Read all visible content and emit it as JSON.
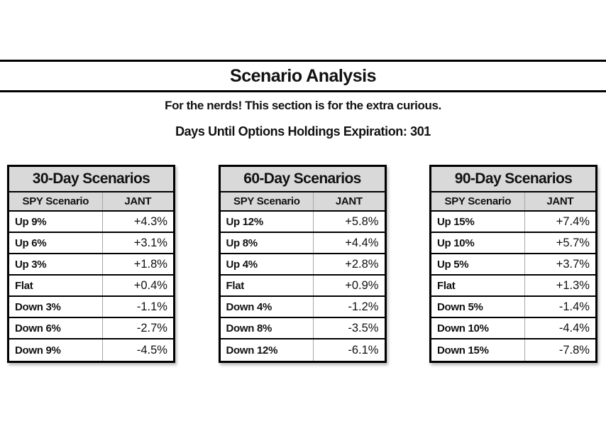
{
  "page": {
    "title": "Scenario Analysis",
    "subtitle": "For the nerds! This section is for the extra curious.",
    "expiration_line": "Days Until Options Holdings Expiration: 301"
  },
  "colors": {
    "header_bg": "#d9d9d9",
    "border": "#000000",
    "column_divider": "#a6a6a6",
    "text": "#111111",
    "background": "#ffffff"
  },
  "tables": [
    {
      "title": "30-Day Scenarios",
      "col_headers": [
        "SPY Scenario",
        "JANT"
      ],
      "rows": [
        [
          "Up 9%",
          "+4.3%"
        ],
        [
          "Up 6%",
          "+3.1%"
        ],
        [
          "Up 3%",
          "+1.8%"
        ],
        [
          "Flat",
          "+0.4%"
        ],
        [
          "Down 3%",
          "-1.1%"
        ],
        [
          "Down 6%",
          "-2.7%"
        ],
        [
          "Down 9%",
          "-4.5%"
        ]
      ]
    },
    {
      "title": "60-Day Scenarios",
      "col_headers": [
        "SPY Scenario",
        "JANT"
      ],
      "rows": [
        [
          "Up 12%",
          "+5.8%"
        ],
        [
          "Up 8%",
          "+4.4%"
        ],
        [
          "Up 4%",
          "+2.8%"
        ],
        [
          "Flat",
          "+0.9%"
        ],
        [
          "Down 4%",
          "-1.2%"
        ],
        [
          "Down 8%",
          "-3.5%"
        ],
        [
          "Down 12%",
          "-6.1%"
        ]
      ]
    },
    {
      "title": "90-Day Scenarios",
      "col_headers": [
        "SPY Scenario",
        "JANT"
      ],
      "rows": [
        [
          "Up 15%",
          "+7.4%"
        ],
        [
          "Up 10%",
          "+5.7%"
        ],
        [
          "Up 5%",
          "+3.7%"
        ],
        [
          "Flat",
          "+1.3%"
        ],
        [
          "Down 5%",
          "-1.4%"
        ],
        [
          "Down 10%",
          "-4.4%"
        ],
        [
          "Down 15%",
          "-7.8%"
        ]
      ]
    }
  ]
}
